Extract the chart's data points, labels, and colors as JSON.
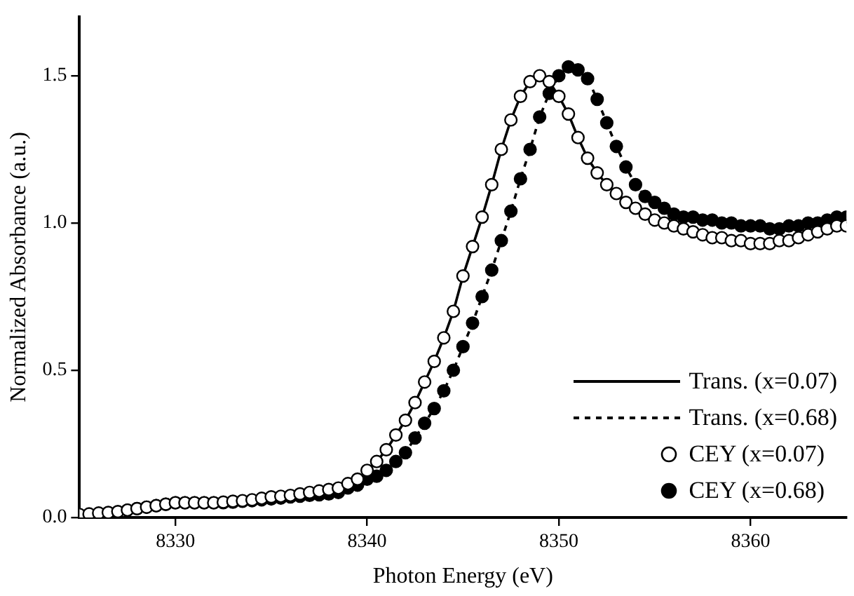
{
  "chart_data": {
    "type": "line",
    "xlabel": "Photon Energy (eV)",
    "ylabel": "Normalized Absorbance (a.u.)",
    "x": [
      8325,
      8325.5,
      8326,
      8326.5,
      8327,
      8327.5,
      8328,
      8328.5,
      8329,
      8329.5,
      8330,
      8330.5,
      8331,
      8331.5,
      8332,
      8332.5,
      8333,
      8333.5,
      8334,
      8334.5,
      8335,
      8335.5,
      8336,
      8336.5,
      8337,
      8337.5,
      8338,
      8338.5,
      8339,
      8339.5,
      8340,
      8340.5,
      8341,
      8341.5,
      8342,
      8342.5,
      8343,
      8343.5,
      8344,
      8344.5,
      8345,
      8345.5,
      8346,
      8346.5,
      8347,
      8347.5,
      8348,
      8348.5,
      8349,
      8349.5,
      8350,
      8350.5,
      8351,
      8351.5,
      8352,
      8352.5,
      8353,
      8353.5,
      8354,
      8354.5,
      8355,
      8355.5,
      8356,
      8356.5,
      8357,
      8357.5,
      8358,
      8358.5,
      8359,
      8359.5,
      8360,
      8360.5,
      8361,
      8361.5,
      8362,
      8362.5,
      8363,
      8363.5,
      8364,
      8364.5,
      8365
    ],
    "xlim": [
      8325,
      8365
    ],
    "xticks": [
      8330,
      8340,
      8350,
      8360
    ],
    "ylim": [
      0,
      1.7
    ],
    "yticks": [
      {
        "value": 0,
        "label": "0.0"
      },
      {
        "value": 0.5,
        "label": "0.5"
      },
      {
        "value": 1,
        "label": "1.0"
      },
      {
        "value": 1.5,
        "label": "1.5"
      }
    ],
    "grid": false,
    "legend": "bottom right",
    "series": [
      {
        "name": "Trans. (x=0.07)",
        "line_style": "solid",
        "marker": "none",
        "color": "#000000",
        "values": [
          0.01,
          0.012,
          0.015,
          0.017,
          0.02,
          0.025,
          0.03,
          0.035,
          0.04,
          0.045,
          0.05,
          0.05,
          0.05,
          0.05,
          0.05,
          0.052,
          0.055,
          0.057,
          0.06,
          0.065,
          0.07,
          0.072,
          0.075,
          0.08,
          0.085,
          0.09,
          0.095,
          0.1,
          0.115,
          0.13,
          0.16,
          0.19,
          0.23,
          0.28,
          0.33,
          0.39,
          0.46,
          0.53,
          0.61,
          0.7,
          0.82,
          0.92,
          1.02,
          1.13,
          1.25,
          1.35,
          1.43,
          1.48,
          1.5,
          1.48,
          1.43,
          1.37,
          1.29,
          1.22,
          1.17,
          1.13,
          1.1,
          1.07,
          1.05,
          1.03,
          1.01,
          1,
          0.99,
          0.98,
          0.97,
          0.96,
          0.95,
          0.95,
          0.94,
          0.94,
          0.93,
          0.93,
          0.93,
          0.94,
          0.94,
          0.95,
          0.96,
          0.97,
          0.98,
          0.99,
          0.99
        ]
      },
      {
        "name": "Trans. (x=0.68)",
        "line_style": "dashed",
        "marker": "none",
        "color": "#000000",
        "values": [
          0.01,
          0.012,
          0.015,
          0.017,
          0.02,
          0.025,
          0.03,
          0.035,
          0.04,
          0.045,
          0.05,
          0.05,
          0.05,
          0.05,
          0.05,
          0.05,
          0.052,
          0.055,
          0.057,
          0.06,
          0.063,
          0.066,
          0.07,
          0.072,
          0.075,
          0.077,
          0.08,
          0.085,
          0.1,
          0.11,
          0.13,
          0.14,
          0.16,
          0.19,
          0.22,
          0.27,
          0.32,
          0.37,
          0.43,
          0.5,
          0.58,
          0.66,
          0.75,
          0.84,
          0.94,
          1.04,
          1.15,
          1.25,
          1.36,
          1.44,
          1.5,
          1.53,
          1.52,
          1.49,
          1.42,
          1.34,
          1.26,
          1.19,
          1.13,
          1.09,
          1.07,
          1.05,
          1.03,
          1.02,
          1.02,
          1.01,
          1.01,
          1,
          1,
          0.99,
          0.99,
          0.99,
          0.98,
          0.98,
          0.99,
          0.99,
          1,
          1,
          1.01,
          1.02,
          1.02
        ]
      },
      {
        "name": "CEY (x=0.07)",
        "type": "scatter",
        "marker": "circle",
        "color": "#ffffff",
        "values": [
          0.01,
          0.012,
          0.015,
          0.017,
          0.02,
          0.025,
          0.03,
          0.035,
          0.04,
          0.045,
          0.05,
          0.05,
          0.05,
          0.05,
          0.05,
          0.052,
          0.055,
          0.057,
          0.06,
          0.065,
          0.07,
          0.072,
          0.075,
          0.08,
          0.085,
          0.09,
          0.095,
          0.1,
          0.115,
          0.13,
          0.16,
          0.19,
          0.23,
          0.28,
          0.33,
          0.39,
          0.46,
          0.53,
          0.61,
          0.7,
          0.82,
          0.92,
          1.02,
          1.13,
          1.25,
          1.35,
          1.43,
          1.48,
          1.5,
          1.48,
          1.43,
          1.37,
          1.29,
          1.22,
          1.17,
          1.13,
          1.1,
          1.07,
          1.05,
          1.03,
          1.01,
          1,
          0.99,
          0.98,
          0.97,
          0.96,
          0.95,
          0.95,
          0.94,
          0.94,
          0.93,
          0.93,
          0.93,
          0.94,
          0.94,
          0.95,
          0.96,
          0.97,
          0.98,
          0.99,
          0.99
        ]
      },
      {
        "name": "CEY (x=0.68)",
        "type": "scatter",
        "marker": "circle",
        "color": "#000000",
        "values": [
          null,
          null,
          null,
          null,
          null,
          0.025,
          0.03,
          0.035,
          0.04,
          0.045,
          0.05,
          0.05,
          0.05,
          0.05,
          0.05,
          0.05,
          0.052,
          0.055,
          0.057,
          0.06,
          0.063,
          0.066,
          0.07,
          0.072,
          0.075,
          0.077,
          0.08,
          0.085,
          0.1,
          0.11,
          0.13,
          0.14,
          0.16,
          0.19,
          0.22,
          0.27,
          0.32,
          0.37,
          0.43,
          0.5,
          0.58,
          0.66,
          0.75,
          0.84,
          0.94,
          1.04,
          1.15,
          1.25,
          1.36,
          1.44,
          1.5,
          1.53,
          1.52,
          1.49,
          1.42,
          1.34,
          1.26,
          1.19,
          1.13,
          1.09,
          1.07,
          1.05,
          1.03,
          1.02,
          1.02,
          1.01,
          1.01,
          1,
          1,
          0.99,
          0.99,
          0.99,
          0.98,
          0.98,
          0.99,
          0.99,
          1,
          1,
          1.01,
          1.02,
          1.02
        ]
      }
    ]
  }
}
